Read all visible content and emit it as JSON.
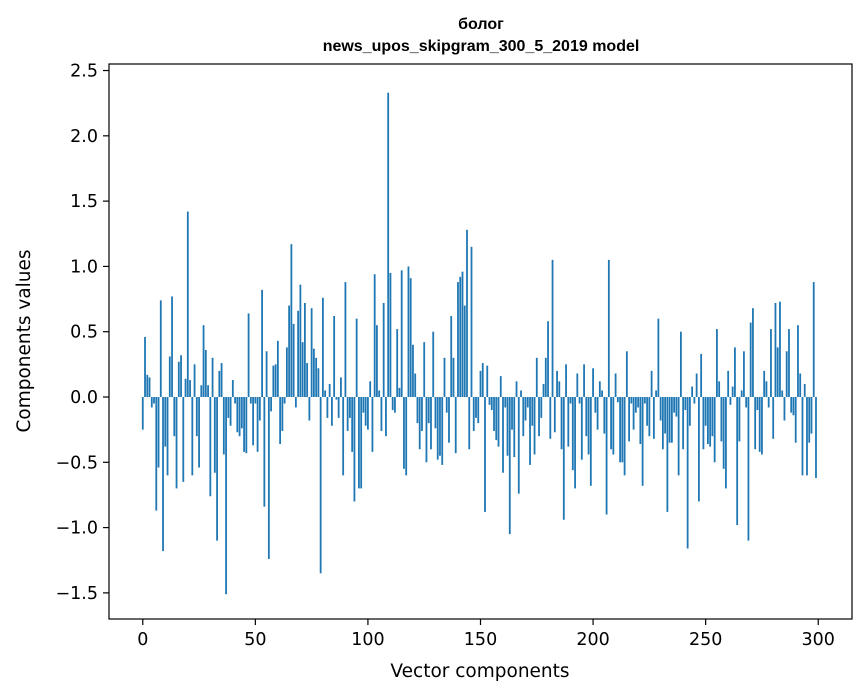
{
  "chart_data": {
    "type": "bar",
    "title_lines": [
      "болог",
      "news_upos_skipgram_300_5_2019 model"
    ],
    "xlabel": "Vector components",
    "ylabel": "Components values",
    "xlim": [
      -15,
      315
    ],
    "ylim": [
      -1.7,
      2.55
    ],
    "xticks": [
      0,
      50,
      100,
      150,
      200,
      250,
      300
    ],
    "xtick_labels": [
      "0",
      "50",
      "100",
      "150",
      "200",
      "250",
      "300"
    ],
    "yticks": [
      -1.5,
      -1.0,
      -0.5,
      0.0,
      0.5,
      1.0,
      1.5,
      2.0,
      2.5
    ],
    "ytick_labels": [
      "−1.5",
      "−1.0",
      "−0.5",
      "0.0",
      "0.5",
      "1.0",
      "1.5",
      "2.0",
      "2.5"
    ],
    "bar_color": "#1f77b4",
    "grid": false,
    "values": [
      -0.25,
      0.46,
      0.17,
      0.15,
      -0.08,
      -0.05,
      -0.87,
      -0.54,
      0.74,
      -1.18,
      -0.38,
      -0.6,
      0.31,
      0.77,
      -0.3,
      -0.7,
      0.27,
      0.32,
      -0.65,
      0.14,
      1.42,
      0.13,
      -0.6,
      0.25,
      -0.3,
      -0.54,
      0.09,
      0.55,
      0.36,
      0.09,
      -0.76,
      0.3,
      -0.58,
      -1.1,
      0.2,
      0.26,
      -0.44,
      -1.51,
      -0.16,
      -0.22,
      0.13,
      -0.05,
      -0.27,
      -0.3,
      -0.24,
      -0.42,
      -0.43,
      0.64,
      -0.05,
      -0.37,
      -0.05,
      -0.42,
      -0.18,
      0.82,
      -0.84,
      0.35,
      -1.24,
      -0.11,
      0.24,
      0.25,
      0.43,
      -0.36,
      -0.26,
      -0.05,
      0.38,
      0.7,
      1.17,
      0.56,
      -0.08,
      0.66,
      0.86,
      0.42,
      0.72,
      0.26,
      -0.18,
      0.68,
      0.37,
      0.3,
      0.22,
      -1.35,
      0.76,
      0.05,
      -0.16,
      0.1,
      -0.22,
      0.62,
      -0.02,
      -0.16,
      0.15,
      -0.6,
      0.88,
      -0.26,
      -0.16,
      -0.42,
      -0.8,
      0.6,
      -0.7,
      -0.7,
      -0.12,
      -0.22,
      -0.25,
      0.12,
      -0.42,
      0.94,
      0.55,
      0.05,
      -0.26,
      0.72,
      -0.3,
      2.33,
      0.95,
      -0.1,
      -0.12,
      0.52,
      0.07,
      0.97,
      -0.55,
      -0.6,
      1.0,
      0.91,
      0.4,
      0.18,
      -0.2,
      -0.4,
      -0.26,
      0.42,
      -0.5,
      -0.2,
      -0.4,
      0.5,
      -0.24,
      -0.48,
      -0.45,
      -0.52,
      0.3,
      -0.12,
      -0.35,
      0.62,
      0.3,
      -0.43,
      0.88,
      0.92,
      0.96,
      0.7,
      1.28,
      -0.4,
      1.15,
      -0.26,
      -0.16,
      -0.2,
      0.2,
      0.26,
      -0.88,
      0.24,
      -0.06,
      -0.1,
      -0.26,
      -0.33,
      -0.38,
      0.16,
      -0.58,
      -0.08,
      -0.45,
      -1.05,
      -0.25,
      -0.46,
      0.12,
      -0.74,
      0.05,
      -0.3,
      -0.18,
      -0.08,
      -0.52,
      -0.22,
      -0.44,
      0.3,
      -0.3,
      -0.16,
      0.1,
      0.3,
      0.58,
      -0.32,
      1.05,
      -0.27,
      0.2,
      0.12,
      -0.4,
      -0.94,
      0.25,
      -0.38,
      -0.05,
      -0.56,
      -0.7,
      0.18,
      -0.05,
      -0.48,
      0.25,
      -0.3,
      -0.44,
      -0.68,
      0.22,
      -0.12,
      -0.25,
      0.12,
      0.05,
      -0.28,
      -0.9,
      1.05,
      -0.4,
      -0.44,
      0.18,
      -0.04,
      -0.5,
      -0.5,
      -0.6,
      0.35,
      -0.34,
      -0.05,
      -0.25,
      -0.12,
      -0.08,
      -0.36,
      -0.68,
      -0.05,
      -0.22,
      -0.3,
      0.2,
      -0.32,
      0.05,
      0.6,
      -0.18,
      -0.4,
      -0.28,
      -0.88,
      -0.35,
      -0.35,
      -0.12,
      -0.15,
      -0.6,
      0.5,
      -0.4,
      -0.1,
      -1.16,
      -0.22,
      0.08,
      -0.05,
      0.18,
      -0.8,
      0.33,
      -0.4,
      -0.22,
      -0.36,
      -0.38,
      -0.3,
      -0.5,
      0.52,
      0.12,
      -0.34,
      -0.55,
      -0.7,
      0.2,
      -0.06,
      0.08,
      0.38,
      -0.98,
      -0.34,
      0.05,
      0.35,
      -0.08,
      -1.1,
      0.57,
      0.68,
      -0.4,
      -0.1,
      -0.42,
      -0.44,
      0.2,
      0.12,
      -0.08,
      0.52,
      -0.32,
      0.72,
      0.38,
      0.73,
      0.05,
      -0.18,
      0.35,
      0.52,
      -0.12,
      -0.14,
      -0.35,
      0.55,
      0.18,
      -0.6,
      0.1,
      -0.6,
      -0.35,
      -0.28,
      0.88,
      -0.62
    ]
  }
}
